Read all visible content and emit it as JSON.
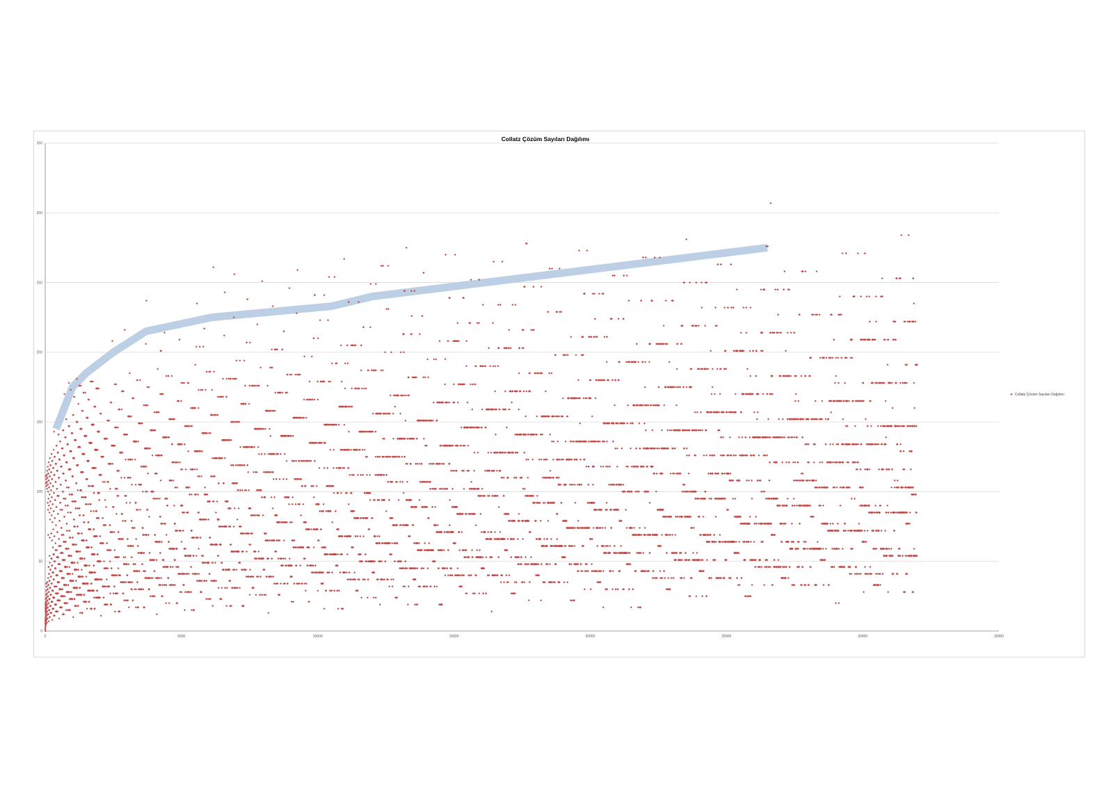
{
  "chart_data": {
    "type": "scatter",
    "title": "Collatz Çözüm Sayıları Dağılımı",
    "xlabel": "",
    "ylabel": "",
    "xlim": [
      0,
      35000
    ],
    "ylim": [
      0,
      350
    ],
    "x_ticks": [
      "0",
      "5000",
      "10000",
      "15000",
      "20000",
      "25000",
      "30000",
      "35000"
    ],
    "y_ticks": [
      "0",
      "50",
      "100",
      "150",
      "200",
      "250",
      "300",
      "350"
    ],
    "grid": "horizontal",
    "legend_position": "right",
    "series": [
      {
        "name": "Collatz Çözüm Sayıları Dağılımı",
        "color": "#be4b48",
        "marker": "diamond",
        "x_range": [
          1,
          32000
        ],
        "note_points_sampled": true,
        "points": [
          [
            1,
            0
          ],
          [
            27,
            111
          ],
          [
            97,
            118
          ],
          [
            171,
            124
          ],
          [
            231,
            127
          ],
          [
            313,
            130
          ],
          [
            327,
            143
          ],
          [
            649,
            144
          ],
          [
            703,
            170
          ],
          [
            871,
            178
          ],
          [
            1161,
            181
          ],
          [
            2223,
            182
          ],
          [
            2463,
            208
          ],
          [
            2919,
            216
          ],
          [
            3711,
            237
          ],
          [
            6171,
            261
          ],
          [
            10971,
            267
          ],
          [
            13255,
            275
          ],
          [
            17647,
            278
          ],
          [
            23529,
            281
          ],
          [
            26623,
            307
          ],
          [
            31911,
            284
          ],
          [
            31467,
            284
          ],
          [
            16000,
            15
          ],
          [
            4200,
            12
          ],
          [
            8200,
            13
          ],
          [
            32000,
            98
          ],
          [
            32000,
            191
          ],
          [
            32000,
            222
          ]
        ]
      },
      {
        "name": "envelope",
        "color": "#b8cce4",
        "points": [
          [
            400,
            145
          ],
          [
            500,
            150
          ],
          [
            900,
            170
          ],
          [
            1000,
            175
          ],
          [
            1500,
            185
          ],
          [
            2500,
            200
          ],
          [
            3700,
            215
          ],
          [
            6100,
            225
          ],
          [
            10500,
            233
          ],
          [
            12000,
            240
          ],
          [
            26500,
            275
          ]
        ]
      }
    ]
  }
}
